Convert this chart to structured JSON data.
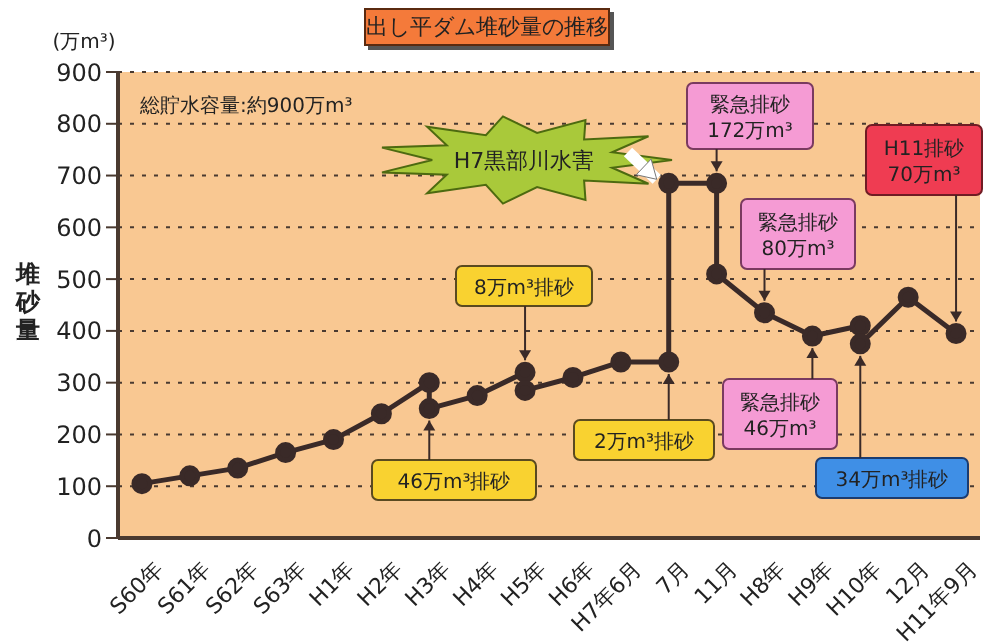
{
  "chart_data": {
    "type": "line",
    "title": "出し平ダム堆砂量の推移",
    "ylabel": "堆砂量",
    "categories": [
      "S60年",
      "S61年",
      "S62年",
      "S63年",
      "H1年",
      "H2年",
      "H3年",
      "H4年",
      "H5年",
      "H6年",
      "H7年6月",
      "7月",
      "11月",
      "H8年",
      "H9年",
      "H10年",
      "12月",
      "H11年9月"
    ],
    "series": [
      {
        "color": "#3a2a28",
        "x": [
          "S60年",
          "S61年",
          "S62年",
          "S63年",
          "H1年",
          "H2年",
          "H3年",
          "H3年",
          "H4年",
          "H5年",
          "H5年",
          "H6年",
          "H7年6月",
          "7月",
          "7月",
          "11月",
          "11月",
          "H8年",
          "H9年",
          "H10年",
          "H10年",
          "12月",
          "H11年9月"
        ],
        "values": [
          105,
          120,
          135,
          165,
          190,
          240,
          300,
          250,
          275,
          320,
          285,
          310,
          340,
          340,
          685,
          685,
          510,
          435,
          390,
          410,
          375,
          465,
          395
        ]
      }
    ],
    "ylim": [
      0,
      900
    ],
    "yticks": [
      0,
      100,
      200,
      300,
      400,
      500,
      600,
      700,
      800,
      900
    ],
    "grid": "y",
    "marker": "circle",
    "line_style": "solid",
    "annotations": [
      "(万m³)",
      "総貯水容量:約900万m³",
      {
        "text": "46万m³排砂",
        "x": "H3年",
        "y": 250
      },
      {
        "text": "8万m³排砂",
        "x": "H5年",
        "y": 320
      },
      "H7黒部川水害",
      {
        "text": "2万m³排砂",
        "x": "7月",
        "y": 340
      },
      {
        "text": "緊急排砂\n172万m³",
        "x": "11月",
        "y": 685
      },
      {
        "text": "緊急排砂\n80万m³",
        "x": "H8年",
        "y": 435
      },
      {
        "text": "緊急排砂\n46万m³",
        "x": "H9年",
        "y": 390
      },
      {
        "text": "34万m³排砂",
        "x": "H10年",
        "y": 375
      },
      {
        "text": "H11排砂\n70万m³",
        "x": "H11年9月",
        "y": 395
      }
    ]
  }
}
